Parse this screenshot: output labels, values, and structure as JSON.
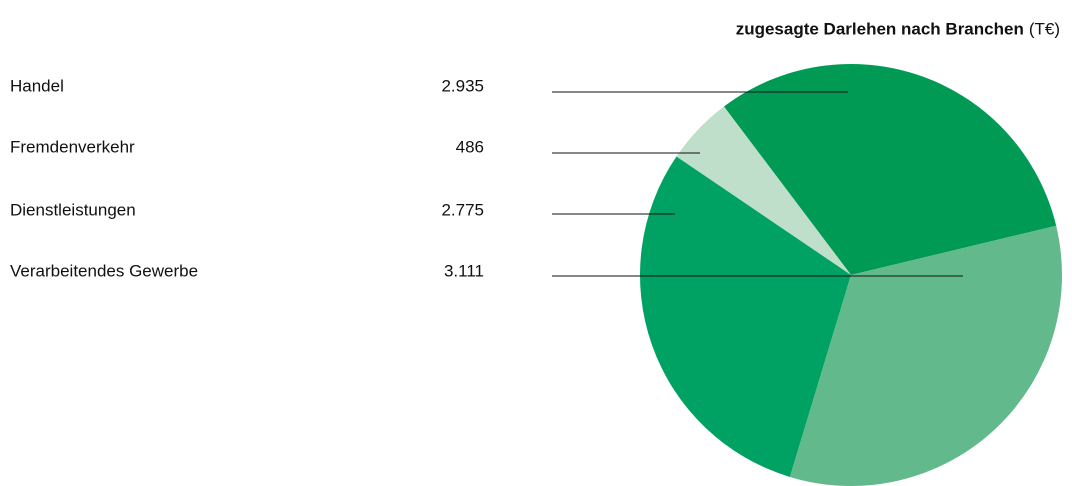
{
  "chart_data": {
    "type": "pie",
    "title": "zugesagte Darlehen nach Branchen",
    "unit": "(T€)",
    "categories": [
      "Handel",
      "Fremdenverkehr",
      "Dienstleistungen",
      "Verarbeitendes Gewerbe"
    ],
    "values": [
      2935,
      486,
      2775,
      3111
    ],
    "value_labels": [
      "2.935",
      "486",
      "2.775",
      "3.111"
    ],
    "colors": [
      "#009a55",
      "#bfdfca",
      "#00a264",
      "#62b98c"
    ]
  }
}
